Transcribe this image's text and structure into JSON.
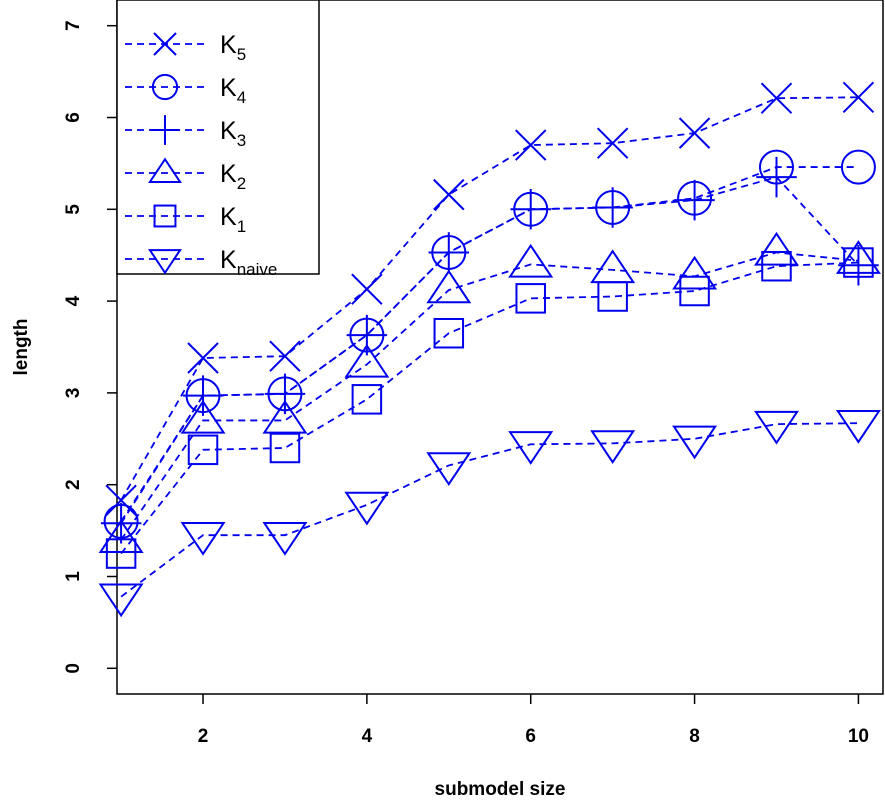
{
  "chart_data": {
    "type": "line",
    "xlabel": "submodel size",
    "ylabel": "length",
    "xlim": [
      0.95,
      10.3
    ],
    "ylim": [
      -0.28,
      7.28
    ],
    "xticks": [
      2,
      4,
      6,
      8,
      10
    ],
    "yticks": [
      0,
      1,
      2,
      3,
      4,
      5,
      6,
      7
    ],
    "grid": false,
    "legend_position": "top-left",
    "line_style": "dashed",
    "color": "#0000ee",
    "x": [
      1,
      2,
      3,
      4,
      5,
      6,
      7,
      8,
      9,
      10
    ],
    "series": [
      {
        "name": "K",
        "sub": "5",
        "marker": "x",
        "values": [
          1.83,
          3.38,
          3.4,
          4.13,
          5.16,
          5.7,
          5.72,
          5.83,
          6.21,
          6.22
        ]
      },
      {
        "name": "K",
        "sub": "4",
        "marker": "circle",
        "values": [
          1.6,
          2.97,
          2.99,
          3.63,
          4.53,
          5.0,
          5.02,
          5.12,
          5.46,
          5.46
        ]
      },
      {
        "name": "K",
        "sub": "3",
        "marker": "plus",
        "values": [
          1.58,
          2.97,
          2.99,
          3.63,
          4.53,
          5.0,
          5.02,
          5.1,
          5.35,
          4.39
        ]
      },
      {
        "name": "K",
        "sub": "2",
        "marker": "triangle-up",
        "values": [
          1.4,
          2.7,
          2.7,
          3.31,
          4.12,
          4.4,
          4.34,
          4.27,
          4.53,
          4.44
        ]
      },
      {
        "name": "K",
        "sub": "1",
        "marker": "square",
        "values": [
          1.25,
          2.38,
          2.4,
          2.93,
          3.65,
          4.03,
          4.05,
          4.11,
          4.38,
          4.42
        ]
      },
      {
        "name": "K",
        "sub": "naive",
        "marker": "triangle-down",
        "values": [
          0.78,
          1.45,
          1.45,
          1.78,
          2.21,
          2.44,
          2.45,
          2.5,
          2.66,
          2.67
        ]
      }
    ]
  }
}
